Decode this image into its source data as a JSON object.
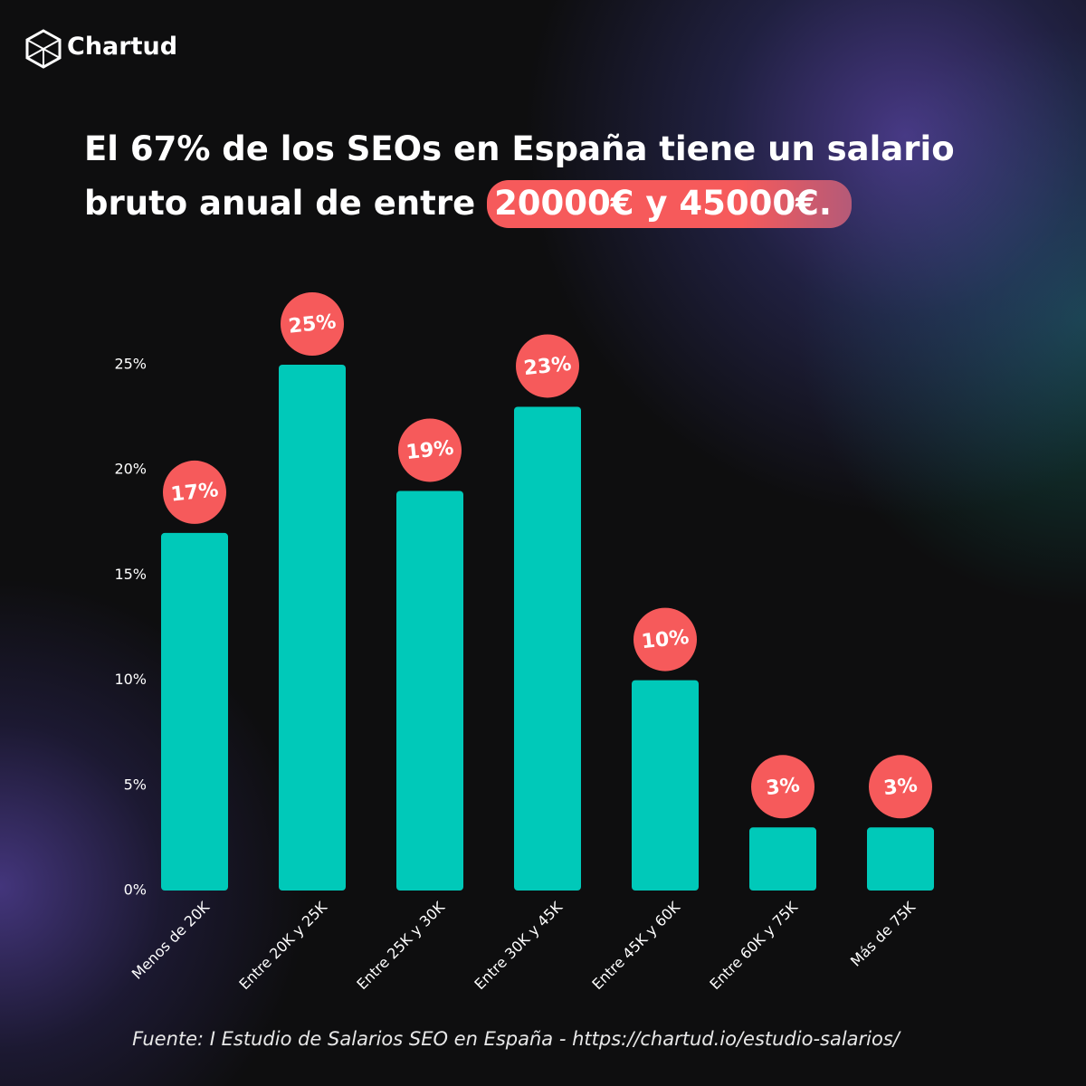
{
  "brand": "Chartud",
  "chart_data": {
    "type": "bar",
    "title": "El 67% de los SEOs en España tiene un salario bruto anual de entre",
    "title_highlight": "20000€ y 45000€.",
    "categories": [
      "Menos de 20K",
      "Entre 20K y 25K",
      "Entre 25K y 30K",
      "Entre 30K y 45K",
      "Entre 45K y 60K",
      "Entre 60K y 75K",
      "Más de 75K"
    ],
    "values": [
      17,
      25,
      19,
      23,
      10,
      3,
      3
    ],
    "value_labels": [
      "17%",
      "25%",
      "19%",
      "23%",
      "10%",
      "3%",
      "3%"
    ],
    "color": "#00c9b9",
    "label_color": "#f65a5b",
    "ylim": [
      0,
      25
    ],
    "yticks": [
      {
        "value": 0,
        "label": "0%"
      },
      {
        "value": 5,
        "label": "5%"
      },
      {
        "value": 10,
        "label": "10%"
      },
      {
        "value": 15,
        "label": "15%"
      },
      {
        "value": 20,
        "label": "20%"
      },
      {
        "value": 25,
        "label": "25%"
      }
    ],
    "grid": false,
    "source": "Fuente: I Estudio de Salarios SEO en España - https://chartud.io/estudio-salarios/"
  }
}
